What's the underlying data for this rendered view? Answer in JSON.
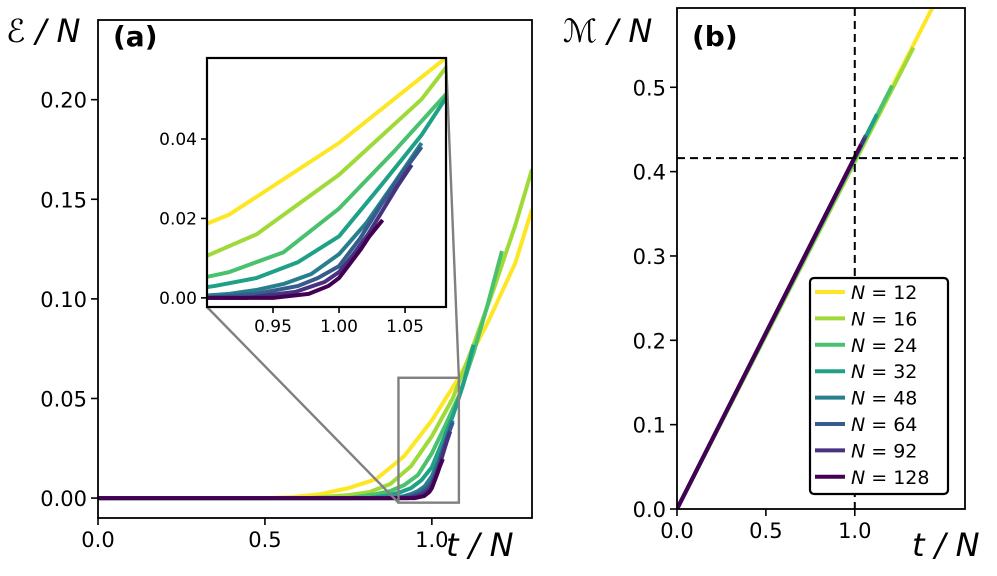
{
  "chart_data": [
    {
      "type": "line",
      "panel_label": "(a)",
      "xlabel": "t / N",
      "ylabel": "ℰ / N",
      "xlim": [
        0,
        1.3
      ],
      "ylim": [
        -0.01,
        0.24
      ],
      "xticks": [
        "0.0",
        "0.5",
        "1.0"
      ],
      "xtick_values": [
        0,
        0.5,
        1.0
      ],
      "yticks": [
        "0.00",
        "0.05",
        "0.10",
        "0.15",
        "0.20"
      ],
      "ytick_values": [
        0,
        0.05,
        0.1,
        0.15,
        0.2
      ],
      "inset": {
        "xlim": [
          0.9,
          1.081
        ],
        "ylim": [
          -0.0023,
          0.0604
        ],
        "xticks": [
          "0.95",
          "1.00",
          "1.05"
        ],
        "xtick_values": [
          0.95,
          1.0,
          1.05
        ],
        "yticks": [
          "0.00",
          "0.02",
          "0.04"
        ],
        "ytick_values": [
          0,
          0.02,
          0.04
        ]
      },
      "series": [
        {
          "name": "N = 12",
          "color": "#fde725",
          "points": [
            [
              0,
              0
            ],
            [
              0.5,
              0
            ],
            [
              0.583,
              0.0005
            ],
            [
              0.667,
              0.002
            ],
            [
              0.75,
              0.005
            ],
            [
              0.833,
              0.0095
            ],
            [
              0.917,
              0.021
            ],
            [
              1.0,
              0.039
            ],
            [
              1.083,
              0.061
            ],
            [
              1.167,
              0.088
            ],
            [
              1.25,
              0.118
            ],
            [
              1.3,
              0.145
            ]
          ]
        },
        {
          "name": "N = 16",
          "color": "#a0da39",
          "points": [
            [
              0,
              0
            ],
            [
              0.625,
              0
            ],
            [
              0.75,
              0.0015
            ],
            [
              0.8125,
              0.003
            ],
            [
              0.875,
              0.007
            ],
            [
              0.9375,
              0.016
            ],
            [
              1.0,
              0.031
            ],
            [
              1.0625,
              0.05
            ],
            [
              1.125,
              0.077
            ],
            [
              1.1875,
              0.106
            ],
            [
              1.25,
              0.137
            ],
            [
              1.3,
              0.165
            ]
          ]
        },
        {
          "name": "N = 24",
          "color": "#4ac16d",
          "points": [
            [
              0,
              0
            ],
            [
              0.75,
              0
            ],
            [
              0.833,
              0.002
            ],
            [
              0.875,
              0.0035
            ],
            [
              0.917,
              0.0065
            ],
            [
              0.958,
              0.0115
            ],
            [
              1.0,
              0.0225
            ],
            [
              1.042,
              0.037
            ],
            [
              1.083,
              0.052
            ],
            [
              1.125,
              0.073
            ],
            [
              1.167,
              0.097
            ],
            [
              1.21,
              0.124
            ]
          ]
        },
        {
          "name": "N = 32",
          "color": "#1fa187",
          "points": [
            [
              0,
              0
            ],
            [
              0.8125,
              0
            ],
            [
              0.875,
              0.0015
            ],
            [
              0.906,
              0.003
            ],
            [
              0.9375,
              0.005
            ],
            [
              0.969,
              0.009
            ],
            [
              1.0,
              0.0155
            ],
            [
              1.031,
              0.028
            ],
            [
              1.0625,
              0.041
            ],
            [
              1.094,
              0.057
            ],
            [
              1.125,
              0.077
            ]
          ]
        },
        {
          "name": "N = 48",
          "color": "#277f8e",
          "points": [
            [
              0,
              0
            ],
            [
              0.875,
              0
            ],
            [
              0.917,
              0.001
            ],
            [
              0.9375,
              0.002
            ],
            [
              0.958,
              0.0035
            ],
            [
              0.979,
              0.006
            ],
            [
              1.0,
              0.011
            ],
            [
              1.021,
              0.019
            ],
            [
              1.042,
              0.029
            ],
            [
              1.0625,
              0.039
            ]
          ]
        },
        {
          "name": "N = 64",
          "color": "#365c8d",
          "points": [
            [
              0,
              0
            ],
            [
              0.9,
              0
            ],
            [
              0.9375,
              0.001
            ],
            [
              0.969,
              0.003
            ],
            [
              0.984,
              0.005
            ],
            [
              1.0,
              0.008
            ],
            [
              1.016,
              0.015
            ],
            [
              1.031,
              0.023
            ],
            [
              1.047,
              0.031
            ],
            [
              1.0625,
              0.038
            ]
          ]
        },
        {
          "name": "N = 92",
          "color": "#46327e",
          "points": [
            [
              0,
              0
            ],
            [
              0.93,
              0
            ],
            [
              0.967,
              0.0015
            ],
            [
              0.989,
              0.004
            ],
            [
              1.0,
              0.0065
            ],
            [
              1.011,
              0.011
            ],
            [
              1.022,
              0.016
            ],
            [
              1.033,
              0.022
            ],
            [
              1.044,
              0.028
            ],
            [
              1.055,
              0.0335
            ]
          ]
        },
        {
          "name": "N = 128",
          "color": "#440154",
          "points": [
            [
              0,
              0
            ],
            [
              0.95,
              0
            ],
            [
              0.977,
              0.001
            ],
            [
              0.992,
              0.003
            ],
            [
              1.0,
              0.005
            ],
            [
              1.008,
              0.0085
            ],
            [
              1.016,
              0.012
            ],
            [
              1.023,
              0.0155
            ],
            [
              1.033,
              0.0196
            ]
          ]
        }
      ]
    },
    {
      "type": "line",
      "panel_label": "(b)",
      "xlabel": "t / N",
      "ylabel": "ℳ / N",
      "xlim": [
        0,
        1.62
      ],
      "ylim": [
        0,
        0.594
      ],
      "xticks": [
        "0.0",
        "0.5",
        "1.0"
      ],
      "xtick_values": [
        0,
        0.5,
        1.0
      ],
      "yticks": [
        "0.0",
        "0.1",
        "0.2",
        "0.3",
        "0.4",
        "0.5"
      ],
      "ytick_values": [
        0,
        0.1,
        0.2,
        0.3,
        0.4,
        0.5
      ],
      "reference_lines": {
        "x": 1.0,
        "y": 0.416
      },
      "legend_position": "lower-right",
      "series": [
        {
          "name": "N = 12",
          "color": "#fde725",
          "points": [
            [
              0,
              0
            ],
            [
              1.45,
              0.6
            ]
          ]
        },
        {
          "name": "N = 16",
          "color": "#a0da39",
          "points": [
            [
              0,
              0
            ],
            [
              1.33,
              0.547
            ]
          ]
        },
        {
          "name": "N = 24",
          "color": "#4ac16d",
          "points": [
            [
              0,
              0
            ],
            [
              1.21,
              0.502
            ]
          ]
        },
        {
          "name": "N = 32",
          "color": "#1fa187",
          "points": [
            [
              0,
              0
            ],
            [
              1.125,
              0.468
            ]
          ]
        },
        {
          "name": "N = 48",
          "color": "#277f8e",
          "points": [
            [
              0,
              0
            ],
            [
              1.0625,
              0.443
            ]
          ]
        },
        {
          "name": "N = 64",
          "color": "#365c8d",
          "points": [
            [
              0,
              0
            ],
            [
              1.0625,
              0.443
            ]
          ]
        },
        {
          "name": "N = 92",
          "color": "#46327e",
          "points": [
            [
              0,
              0
            ],
            [
              1.055,
              0.44
            ]
          ]
        },
        {
          "name": "N = 128",
          "color": "#440154",
          "points": [
            [
              0,
              0
            ],
            [
              1.035,
              0.432
            ]
          ]
        }
      ]
    }
  ]
}
